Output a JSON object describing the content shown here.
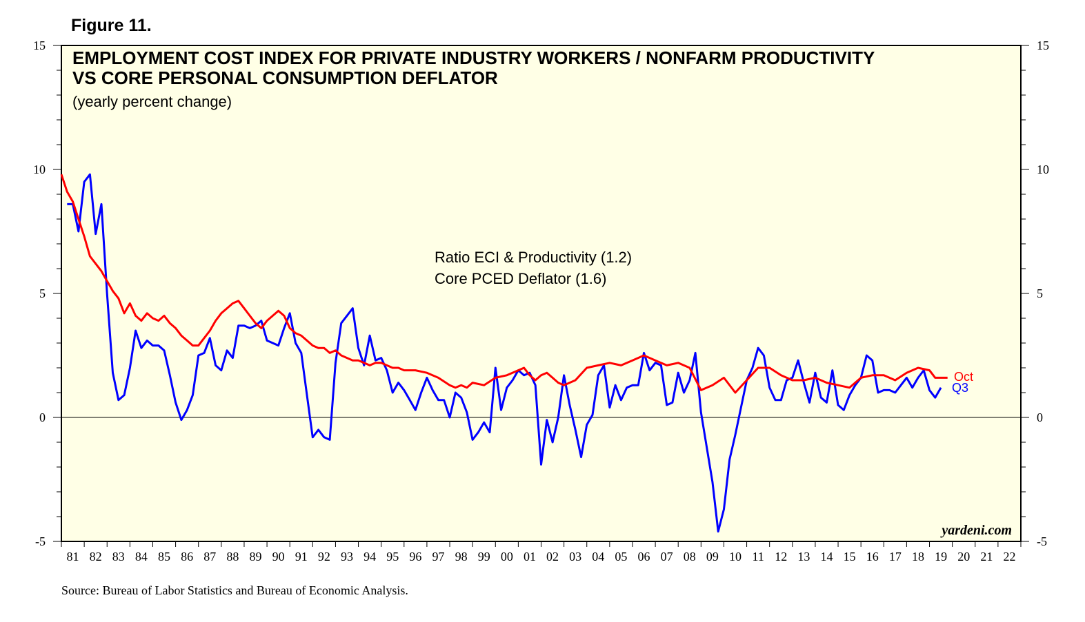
{
  "figure_label": "Figure 11.",
  "source": "Source: Bureau of Labor Statistics and Bureau of Economic Analysis.",
  "watermark": "yardeni.com",
  "colors": {
    "background": "#ffffe6",
    "eci_series": "#0000ff",
    "pce_series": "#ff0000"
  },
  "chart_data": {
    "type": "line",
    "title_lines": [
      "EMPLOYMENT COST INDEX FOR PRIVATE INDUSTRY WORKERS / NONFARM PRODUCTIVITY",
      "VS CORE PERSONAL CONSUMPTION DEFLATOR"
    ],
    "subtitle": "(yearly percent change)",
    "ylim": [
      -5,
      15
    ],
    "xlim": [
      1981,
      2023
    ],
    "y_ticks": [
      "15",
      "10",
      "5",
      "0",
      "-5"
    ],
    "x_tick_labels": [
      "81",
      "82",
      "83",
      "84",
      "85",
      "86",
      "87",
      "88",
      "89",
      "90",
      "91",
      "92",
      "93",
      "94",
      "95",
      "96",
      "97",
      "98",
      "99",
      "00",
      "01",
      "02",
      "03",
      "04",
      "05",
      "06",
      "07",
      "08",
      "09",
      "10",
      "11",
      "12",
      "13",
      "14",
      "15",
      "16",
      "17",
      "18",
      "19",
      "20",
      "21",
      "22"
    ],
    "legend": [
      "Ratio ECI & Productivity (1.2)",
      "Core PCED Deflator (1.6)"
    ],
    "series": [
      {
        "name": "Ratio ECI & Productivity",
        "end_label": "Q3",
        "x": [
          1981.25,
          1981.5,
          1981.75,
          1982.0,
          1982.25,
          1982.5,
          1982.75,
          1983.0,
          1983.25,
          1983.5,
          1983.75,
          1984.0,
          1984.25,
          1984.5,
          1984.75,
          1985.0,
          1985.25,
          1985.5,
          1985.75,
          1986.0,
          1986.25,
          1986.5,
          1986.75,
          1987.0,
          1987.25,
          1987.5,
          1987.75,
          1988.0,
          1988.25,
          1988.5,
          1988.75,
          1989.0,
          1989.25,
          1989.5,
          1989.75,
          1990.0,
          1990.25,
          1990.5,
          1990.75,
          1991.0,
          1991.25,
          1991.5,
          1991.75,
          1992.0,
          1992.25,
          1992.5,
          1992.75,
          1993.0,
          1993.25,
          1993.5,
          1993.75,
          1994.0,
          1994.25,
          1994.5,
          1994.75,
          1995.0,
          1995.25,
          1995.5,
          1995.75,
          1996.0,
          1996.25,
          1996.5,
          1996.75,
          1997.0,
          1997.25,
          1997.5,
          1997.75,
          1998.0,
          1998.25,
          1998.5,
          1998.75,
          1999.0,
          1999.25,
          1999.5,
          1999.75,
          2000.0,
          2000.25,
          2000.5,
          2000.75,
          2001.0,
          2001.25,
          2001.5,
          2001.75,
          2002.0,
          2002.25,
          2002.5,
          2002.75,
          2003.0,
          2003.25,
          2003.5,
          2003.75,
          2004.0,
          2004.25,
          2004.5,
          2004.75,
          2005.0,
          2005.25,
          2005.5,
          2005.75,
          2006.0,
          2006.25,
          2006.5,
          2006.75,
          2007.0,
          2007.25,
          2007.5,
          2007.75,
          2008.0,
          2008.25,
          2008.5,
          2008.75,
          2009.0,
          2009.25,
          2009.5,
          2009.75,
          2010.0,
          2010.25,
          2010.5,
          2010.75,
          2011.0,
          2011.25,
          2011.5,
          2011.75,
          2012.0,
          2012.25,
          2012.5,
          2012.75,
          2013.0,
          2013.25,
          2013.5,
          2013.75,
          2014.0,
          2014.25,
          2014.5,
          2014.75,
          2015.0,
          2015.25,
          2015.5,
          2015.75,
          2016.0,
          2016.25,
          2016.5,
          2016.75,
          2017.0,
          2017.25,
          2017.5,
          2017.75,
          2018.0,
          2018.25,
          2018.5,
          2018.75,
          2019.0,
          2019.25,
          2019.5
        ],
        "values": [
          8.6,
          8.6,
          7.5,
          9.5,
          9.8,
          7.4,
          8.6,
          5.0,
          1.8,
          0.7,
          0.9,
          2.0,
          3.5,
          2.8,
          3.1,
          2.9,
          2.9,
          2.7,
          1.7,
          0.6,
          -0.1,
          0.3,
          0.9,
          2.5,
          2.6,
          3.2,
          2.1,
          1.9,
          2.7,
          2.4,
          3.7,
          3.7,
          3.6,
          3.7,
          3.9,
          3.1,
          3.0,
          2.9,
          3.6,
          4.2,
          3.0,
          2.6,
          0.9,
          -0.8,
          -0.5,
          -0.8,
          -0.9,
          2.2,
          3.8,
          4.1,
          4.4,
          2.8,
          2.1,
          3.3,
          2.3,
          2.4,
          1.9,
          1.0,
          1.4,
          1.1,
          0.7,
          0.3,
          1.0,
          1.6,
          1.1,
          0.7,
          0.7,
          0.0,
          1.0,
          0.8,
          0.2,
          -0.9,
          -0.6,
          -0.2,
          -0.6,
          2.0,
          0.3,
          1.2,
          1.5,
          1.9,
          1.7,
          1.8,
          1.3,
          -1.9,
          -0.1,
          -1.0,
          0.0,
          1.7,
          0.5,
          -0.5,
          -1.6,
          -0.3,
          0.1,
          1.7,
          2.1,
          0.4,
          1.3,
          0.7,
          1.2,
          1.3,
          1.3,
          2.6,
          1.9,
          2.2,
          2.1,
          0.5,
          0.6,
          1.8,
          1.0,
          1.5,
          2.6,
          0.2,
          -1.2,
          -2.6,
          -4.6,
          -3.7,
          -1.7,
          -0.7,
          0.4,
          1.5,
          2.0,
          2.8,
          2.5,
          1.2,
          0.7,
          0.7,
          1.5,
          1.6,
          2.3,
          1.4,
          0.6,
          1.8,
          0.8,
          0.6,
          1.9,
          0.5,
          0.3,
          0.9,
          1.3,
          1.6,
          2.5,
          2.3,
          1.0,
          1.1,
          1.1,
          1.0,
          1.3,
          1.6,
          1.2,
          1.6,
          1.9,
          1.1,
          0.8,
          1.2
        ]
      },
      {
        "name": "Core PCED Deflator",
        "end_label": "Oct",
        "x": [
          1981.0,
          1981.25,
          1981.5,
          1981.75,
          1982.0,
          1982.25,
          1982.5,
          1982.75,
          1983.0,
          1983.25,
          1983.5,
          1983.75,
          1984.0,
          1984.25,
          1984.5,
          1984.75,
          1985.0,
          1985.25,
          1985.5,
          1985.75,
          1986.0,
          1986.25,
          1986.5,
          1986.75,
          1987.0,
          1987.25,
          1987.5,
          1987.75,
          1988.0,
          1988.25,
          1988.5,
          1988.75,
          1989.0,
          1989.25,
          1989.5,
          1989.75,
          1990.0,
          1990.25,
          1990.5,
          1990.75,
          1991.0,
          1991.25,
          1991.5,
          1991.75,
          1992.0,
          1992.25,
          1992.5,
          1992.75,
          1993.0,
          1993.25,
          1993.5,
          1993.75,
          1994.0,
          1994.25,
          1994.5,
          1994.75,
          1995.0,
          1995.25,
          1995.5,
          1995.75,
          1996.0,
          1996.5,
          1997.0,
          1997.5,
          1998.0,
          1998.25,
          1998.5,
          1998.75,
          1999.0,
          1999.5,
          2000.0,
          2000.5,
          2001.0,
          2001.25,
          2001.5,
          2001.75,
          2002.0,
          2002.25,
          2002.5,
          2002.75,
          2003.0,
          2003.5,
          2004.0,
          2004.5,
          2005.0,
          2005.5,
          2006.0,
          2006.5,
          2007.0,
          2007.5,
          2008.0,
          2008.5,
          2009.0,
          2009.5,
          2010.0,
          2010.5,
          2011.0,
          2011.5,
          2012.0,
          2012.5,
          2013.0,
          2013.5,
          2014.0,
          2014.5,
          2015.0,
          2015.5,
          2016.0,
          2016.5,
          2017.0,
          2017.5,
          2018.0,
          2018.5,
          2019.0,
          2019.25,
          2019.5,
          2019.79
        ],
        "values": [
          9.8,
          9.1,
          8.7,
          8.0,
          7.3,
          6.5,
          6.2,
          5.9,
          5.5,
          5.1,
          4.8,
          4.2,
          4.6,
          4.1,
          3.9,
          4.2,
          4.0,
          3.9,
          4.1,
          3.8,
          3.6,
          3.3,
          3.1,
          2.9,
          2.9,
          3.2,
          3.5,
          3.9,
          4.2,
          4.4,
          4.6,
          4.7,
          4.4,
          4.1,
          3.8,
          3.6,
          3.9,
          4.1,
          4.3,
          4.1,
          3.6,
          3.4,
          3.3,
          3.1,
          2.9,
          2.8,
          2.8,
          2.6,
          2.7,
          2.5,
          2.4,
          2.3,
          2.3,
          2.2,
          2.1,
          2.2,
          2.2,
          2.1,
          2.0,
          2.0,
          1.9,
          1.9,
          1.8,
          1.6,
          1.3,
          1.2,
          1.3,
          1.2,
          1.4,
          1.3,
          1.6,
          1.7,
          1.9,
          2.0,
          1.7,
          1.5,
          1.7,
          1.8,
          1.6,
          1.4,
          1.3,
          1.5,
          2.0,
          2.1,
          2.2,
          2.1,
          2.3,
          2.5,
          2.3,
          2.1,
          2.2,
          2.0,
          1.1,
          1.3,
          1.6,
          1.0,
          1.5,
          2.0,
          2.0,
          1.7,
          1.5,
          1.5,
          1.6,
          1.4,
          1.3,
          1.2,
          1.6,
          1.7,
          1.7,
          1.5,
          1.8,
          2.0,
          1.9,
          1.6,
          1.6,
          1.6
        ]
      }
    ]
  }
}
